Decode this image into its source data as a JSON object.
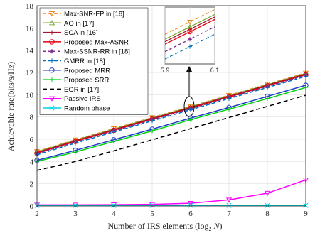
{
  "chart_data": {
    "type": "line",
    "xlabel": "Number of IRS elements (log",
    "xlabel_sub": "2",
    "xlabel_var": " N",
    "xlabel_close": ")",
    "ylabel": "Achievable rate(bits/s/Hz)",
    "xlim": [
      2,
      9
    ],
    "ylim": [
      0,
      18
    ],
    "xticks": [
      2,
      3,
      4,
      5,
      6,
      7,
      8,
      9
    ],
    "yticks": [
      0,
      2,
      4,
      6,
      8,
      10,
      12,
      14,
      16,
      18
    ],
    "grid": true,
    "legend_position": "top-left",
    "x": [
      2,
      3,
      4,
      5,
      6,
      7,
      8,
      9
    ],
    "series": [
      {
        "name": "Max-SNR-FP in [18]",
        "color": "#f07f14",
        "dash": "5,3",
        "marker": "triangle-down",
        "values": [
          4.9,
          5.95,
          6.95,
          7.95,
          8.95,
          9.95,
          10.95,
          11.95
        ]
      },
      {
        "name": "AO in [17]",
        "color": "#77ac30",
        "dash": "",
        "marker": "triangle-up",
        "values": [
          4.85,
          5.9,
          6.9,
          7.9,
          8.9,
          9.9,
          10.9,
          11.9
        ]
      },
      {
        "name": "SCA in [16]",
        "color": "#a2142f",
        "dash": "",
        "marker": "plus",
        "values": [
          4.8,
          5.85,
          6.85,
          7.85,
          8.85,
          9.85,
          10.85,
          11.85
        ]
      },
      {
        "name": "Proposed Max-ASNR",
        "color": "#e8000b",
        "dash": "",
        "marker": "circle",
        "values": [
          4.75,
          5.8,
          6.8,
          7.8,
          8.8,
          9.8,
          10.8,
          11.8
        ]
      },
      {
        "name": "Max-SSNR-RR in [18]",
        "color": "#7e2f8e",
        "dash": "4,3",
        "marker": "star",
        "values": [
          4.7,
          5.75,
          6.75,
          7.75,
          8.75,
          9.75,
          10.75,
          11.75
        ]
      },
      {
        "name": "GMRR in [18]",
        "color": "#0072bd",
        "dash": "5,3",
        "marker": "plus",
        "values": [
          4.6,
          5.65,
          6.65,
          7.65,
          8.65,
          9.65,
          10.65,
          11.65
        ]
      },
      {
        "name": "Proposed MRR",
        "color": "#1f3cc8",
        "dash": "",
        "marker": "circle",
        "values": [
          4.1,
          5.0,
          5.95,
          6.9,
          7.9,
          8.85,
          9.85,
          10.85
        ]
      },
      {
        "name": "Proposed SRR",
        "color": "#00d40f",
        "dash": "",
        "marker": "plus",
        "values": [
          4.0,
          4.85,
          5.8,
          6.75,
          7.75,
          8.7,
          9.65,
          10.65
        ]
      },
      {
        "name": "EGR in [17]",
        "color": "#000000",
        "dash": "6,4",
        "marker": "none",
        "values": [
          3.2,
          4.0,
          4.95,
          5.95,
          6.95,
          7.95,
          8.95,
          9.95
        ]
      },
      {
        "name": "Passive IRS",
        "color": "#ff00ff",
        "dash": "",
        "marker": "triangle-down",
        "values": [
          0.1,
          0.1,
          0.12,
          0.15,
          0.25,
          0.55,
          1.15,
          2.35
        ]
      },
      {
        "name": "Random phase",
        "color": "#00d4e0",
        "dash": "",
        "marker": "x",
        "values": [
          0.05,
          0.05,
          0.05,
          0.05,
          0.05,
          0.05,
          0.05,
          0.05
        ]
      }
    ],
    "inset": {
      "xlim": [
        5.9,
        6.1
      ],
      "xticks": [
        5.9,
        6,
        6.1
      ],
      "x": [
        5.9,
        6.0,
        6.1
      ],
      "values": [
        [
          8.7,
          8.95,
          9.2
        ],
        [
          8.6,
          8.85,
          9.1
        ],
        [
          8.55,
          8.8,
          9.05
        ],
        [
          8.5,
          8.75,
          9.0
        ],
        [
          8.35,
          8.6,
          8.85
        ],
        [
          8.2,
          8.45,
          8.7
        ]
      ],
      "ylim": [
        8.1,
        9.25
      ]
    }
  }
}
